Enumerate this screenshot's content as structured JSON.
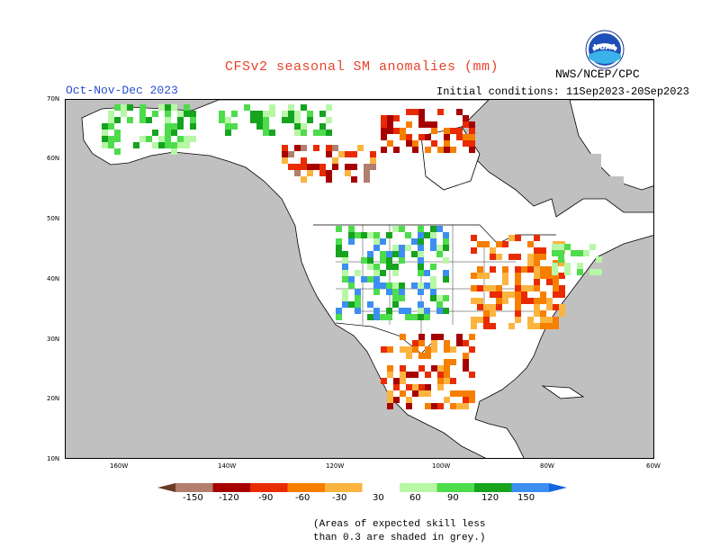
{
  "title": "CFSv2 seasonal SM anomalies (mm)",
  "period": "Oct-Nov-Dec 2023",
  "initial_conditions": "Initial conditions: 11Sep2023-20Sep2023",
  "org": "NWS/NCEP/CPC",
  "logo_text": "NOAA",
  "lat_ticks": [
    "70N",
    "60N",
    "50N",
    "40N",
    "30N",
    "20N",
    "10N"
  ],
  "lon_ticks": [
    "160W",
    "140W",
    "120W",
    "100W",
    "80W",
    "60W"
  ],
  "legend": {
    "labels": [
      "-150",
      "-120",
      "-90",
      "-60",
      "-30",
      "30",
      "60",
      "90",
      "120",
      "150"
    ],
    "colors": [
      "#6b3a26",
      "#b27e6e",
      "#a60000",
      "#e82b00",
      "#f77f00",
      "#fbb43f",
      "#ffffff",
      "#b8f7a6",
      "#4ddc4b",
      "#16a31e",
      "#3c8ff0",
      "#1464e0"
    ]
  },
  "footnote_line1": "(Areas of expected skill less",
  "footnote_line2": "than 0.3 are shaded in grey.)",
  "colors": {
    "ocean": "#c0c0c0",
    "land": "#ffffff",
    "skill_grey": "#c0c0c0",
    "title_red": "#e8432a",
    "period_blue": "#2a4fd0"
  }
}
